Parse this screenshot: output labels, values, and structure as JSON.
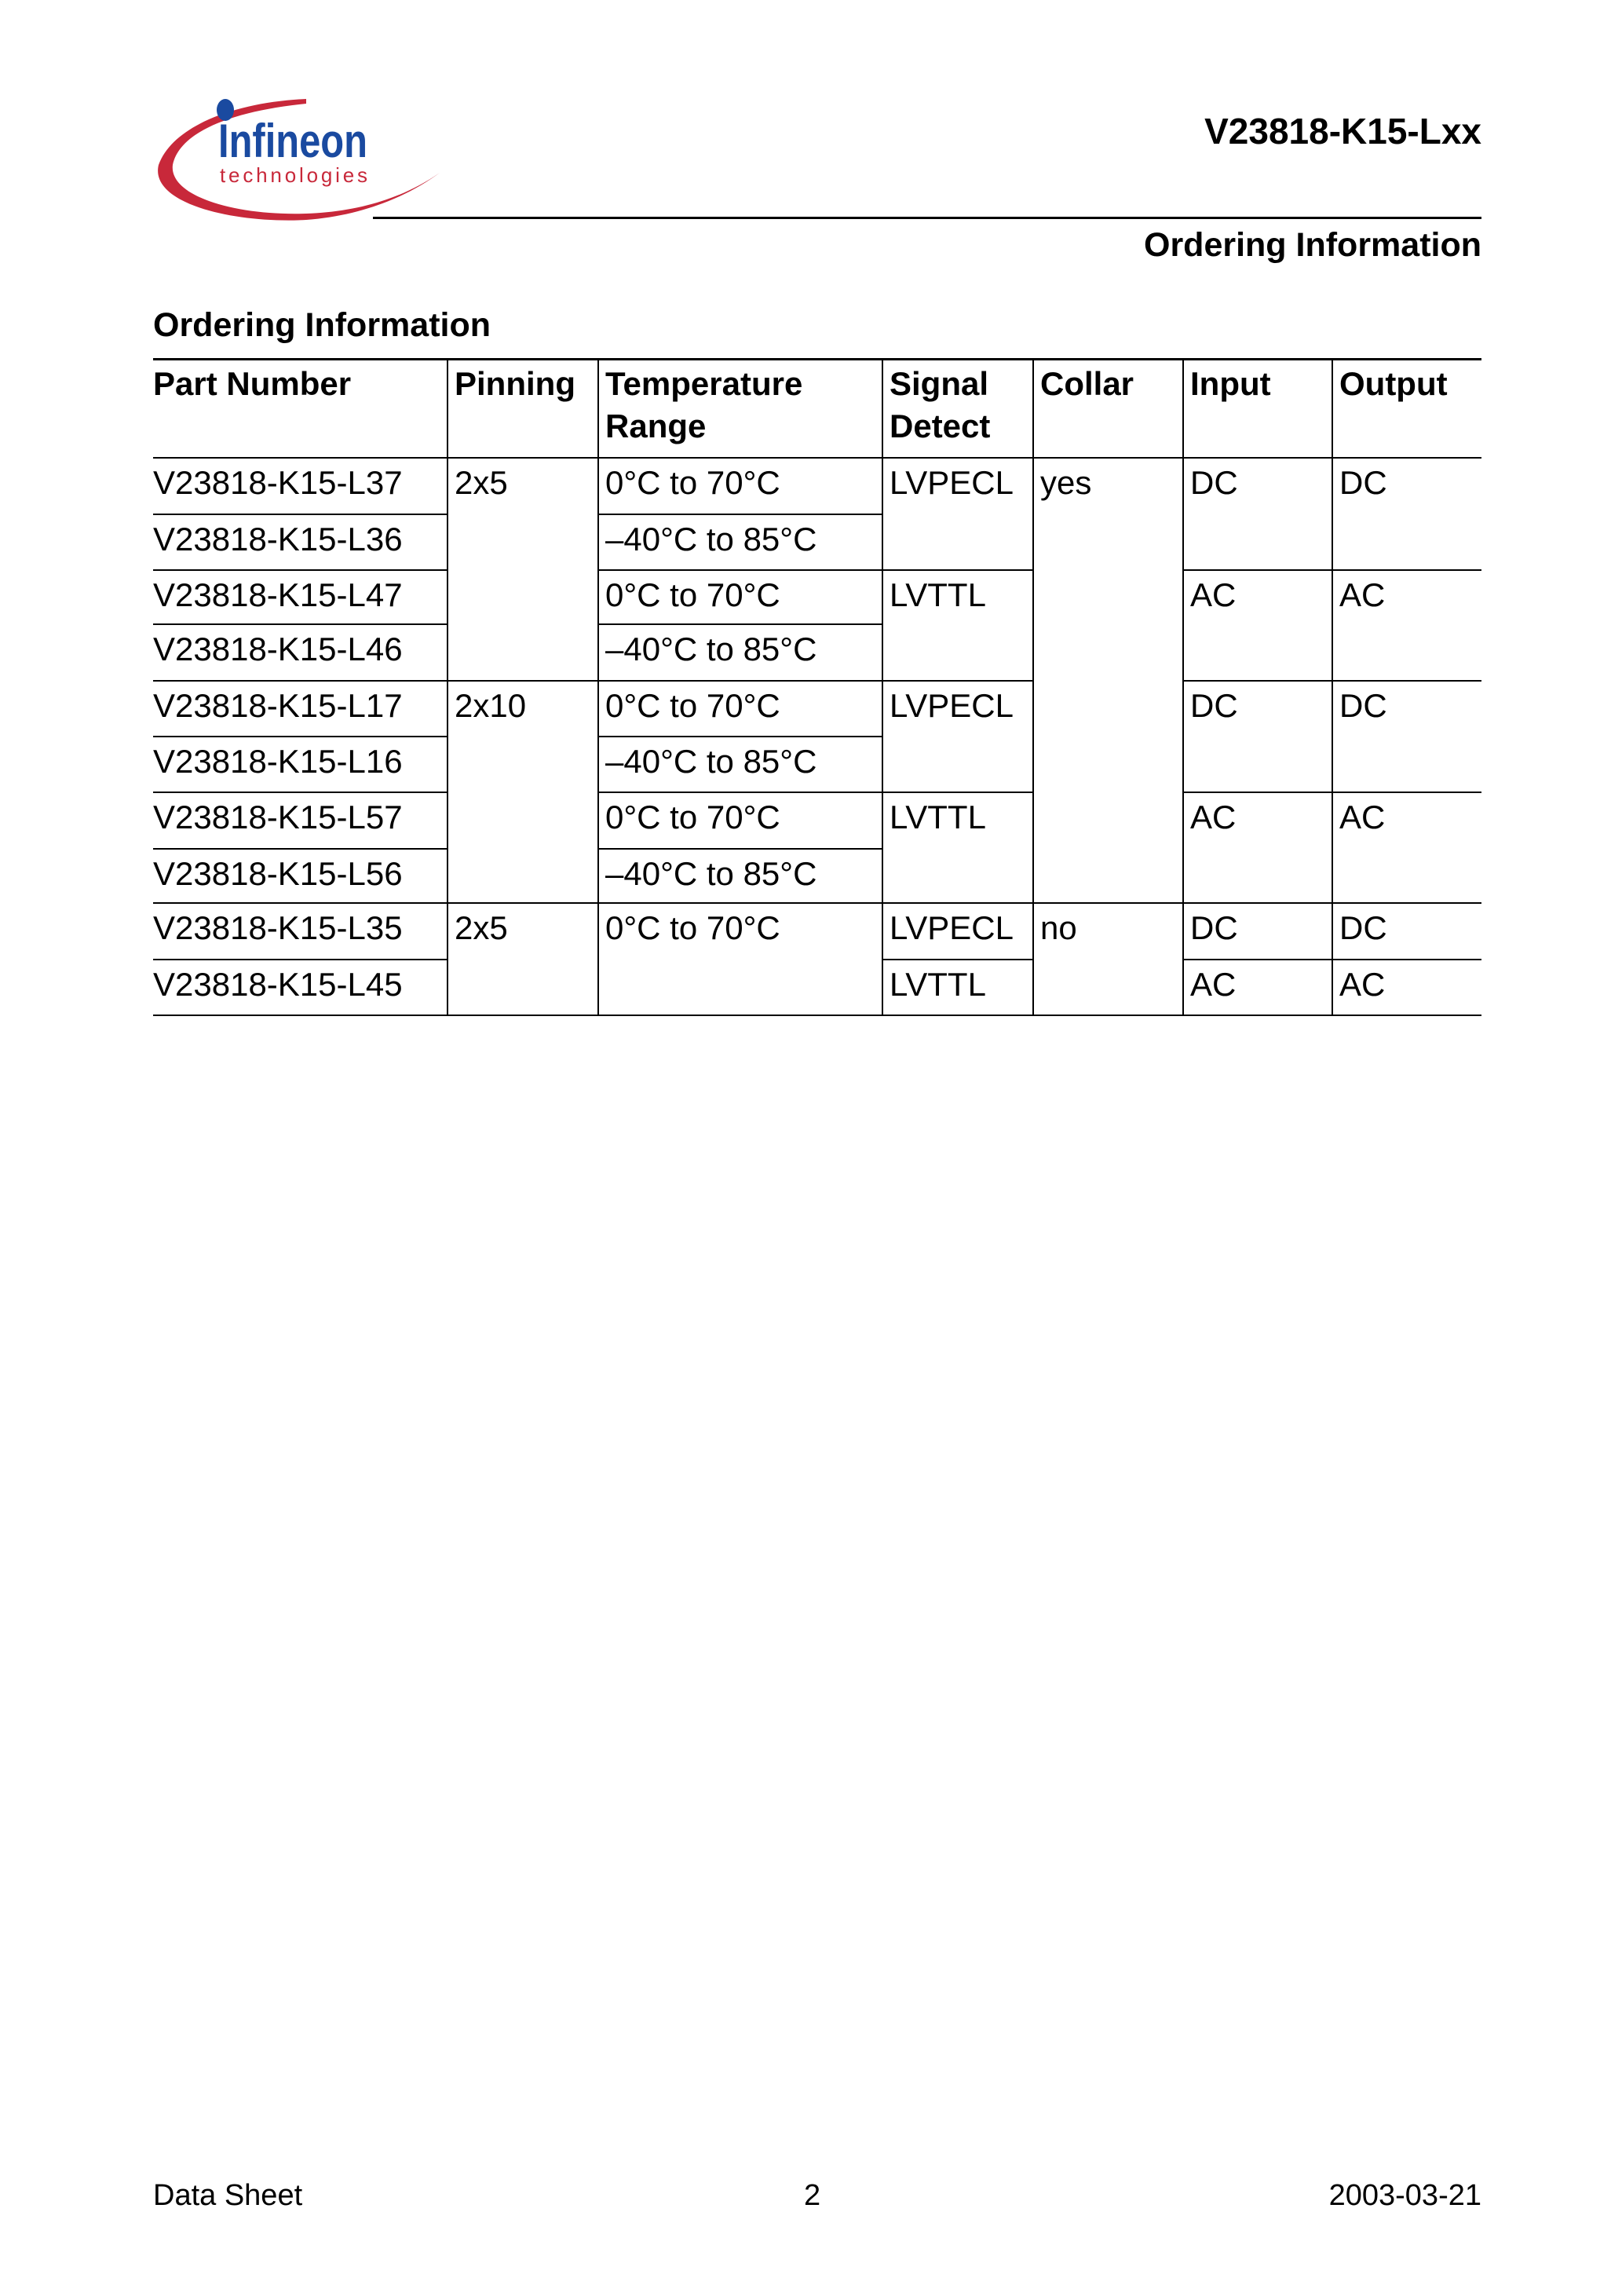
{
  "header": {
    "logo_text": "Infineon",
    "logo_subtext": "technologies",
    "doc_title": "V23818-K15-Lxx",
    "section": "Ordering Information"
  },
  "colors": {
    "logo_red": "#c8283a",
    "logo_blue": "#1a4aa0"
  },
  "table": {
    "title": "Ordering Information",
    "headers": [
      "Part Number",
      "Pinning",
      "Temperature\nRange",
      "Signal\nDetect",
      "Collar",
      "Input",
      "Output"
    ],
    "part_numbers": [
      "V23818-K15-L37",
      "V23818-K15-L36",
      "V23818-K15-L47",
      "V23818-K15-L46",
      "V23818-K15-L17",
      "V23818-K15-L16",
      "V23818-K15-L57",
      "V23818-K15-L56",
      "V23818-K15-L35",
      "V23818-K15-L45"
    ],
    "pinning": [
      {
        "text": "2x5",
        "row": 0
      },
      {
        "text": "2x10",
        "row": 4
      },
      {
        "text": "2x5",
        "row": 8
      }
    ],
    "temperature": [
      {
        "text": "0°C to 70°C",
        "row": 0
      },
      {
        "text": "–40°C to 85°C",
        "row": 1
      },
      {
        "text": "0°C to 70°C",
        "row": 2
      },
      {
        "text": "–40°C to 85°C",
        "row": 3
      },
      {
        "text": "0°C to 70°C",
        "row": 4
      },
      {
        "text": "–40°C to 85°C",
        "row": 5
      },
      {
        "text": "0°C to 70°C",
        "row": 6
      },
      {
        "text": "–40°C to 85°C",
        "row": 7
      },
      {
        "text": "0°C to 70°C",
        "row": 8
      }
    ],
    "signal_detect": [
      {
        "text": "LVPECL",
        "row": 0
      },
      {
        "text": "LVTTL",
        "row": 2
      },
      {
        "text": "LVPECL",
        "row": 4
      },
      {
        "text": "LVTTL",
        "row": 6
      },
      {
        "text": "LVPECL",
        "row": 8
      },
      {
        "text": "LVTTL",
        "row": 9
      }
    ],
    "collar": [
      {
        "text": "yes",
        "row": 0
      },
      {
        "text": "no",
        "row": 8
      }
    ],
    "input": [
      {
        "text": "DC",
        "row": 0
      },
      {
        "text": "AC",
        "row": 2
      },
      {
        "text": "DC",
        "row": 4
      },
      {
        "text": "AC",
        "row": 6
      },
      {
        "text": "DC",
        "row": 8
      },
      {
        "text": "AC",
        "row": 9
      }
    ],
    "output": [
      {
        "text": "DC",
        "row": 0
      },
      {
        "text": "AC",
        "row": 2
      },
      {
        "text": "DC",
        "row": 4
      },
      {
        "text": "AC",
        "row": 6
      },
      {
        "text": "DC",
        "row": 8
      },
      {
        "text": "AC",
        "row": 9
      }
    ]
  },
  "footer": {
    "left": "Data Sheet",
    "center": "2",
    "right": "2003-03-21"
  }
}
